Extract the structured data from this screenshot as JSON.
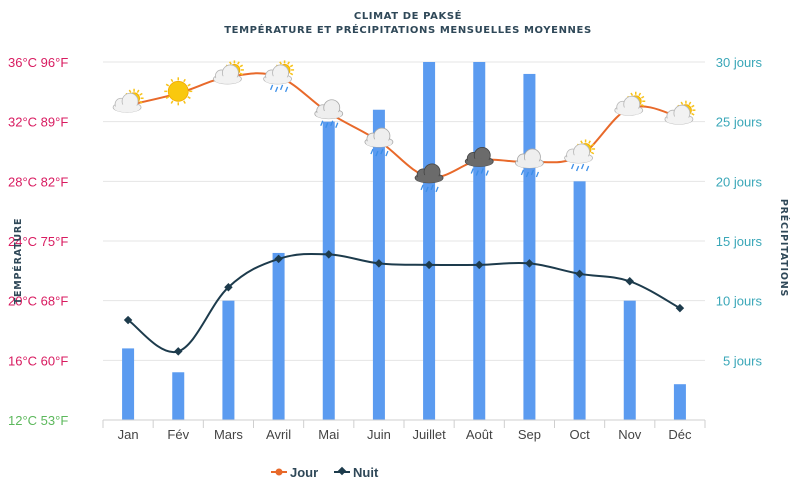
{
  "chart_data": {
    "type": "bar+line",
    "title": "CLIMAT DE PAKSÉ",
    "subtitle": "TEMPÉRATURE ET PRÉCIPITATIONS MENSUELLES MOYENNES",
    "ylabel_left": "TEMPÉRATURE",
    "ylabel_right": "PRÉCIPITATIONS",
    "categories": [
      "Jan",
      "Fév",
      "Mars",
      "Avril",
      "Mai",
      "Juin",
      "Juillet",
      "Août",
      "Sep",
      "Oct",
      "Nov",
      "Déc"
    ],
    "ylim_left": [
      12,
      36
    ],
    "ylim_right": [
      0,
      30
    ],
    "y_ticks_left": [
      {
        "value": 36,
        "label": "36°C 96°F",
        "color": "#d81b60"
      },
      {
        "value": 32,
        "label": "32°C 89°F",
        "color": "#d81b60"
      },
      {
        "value": 28,
        "label": "28°C 82°F",
        "color": "#d81b60"
      },
      {
        "value": 24,
        "label": "24°C 75°F",
        "color": "#d81b60"
      },
      {
        "value": 20,
        "label": "20°C 68°F",
        "color": "#d81b60"
      },
      {
        "value": 16,
        "label": "16°C 60°F",
        "color": "#d81b60"
      },
      {
        "value": 12,
        "label": "12°C 53°F",
        "color": "#5cb85c"
      }
    ],
    "y_ticks_right": [
      {
        "value": 30,
        "label": "30 jours"
      },
      {
        "value": 25,
        "label": "25 jours"
      },
      {
        "value": 20,
        "label": "20 jours"
      },
      {
        "value": 15,
        "label": "15 jours"
      },
      {
        "value": 10,
        "label": "10 jours"
      },
      {
        "value": 5,
        "label": "5 jours"
      }
    ],
    "series": [
      {
        "name": "Précipitations",
        "kind": "bar",
        "axis": "right",
        "color": "#5b9bf0",
        "values": [
          6,
          4,
          10,
          14,
          25,
          26,
          30,
          30,
          29,
          20,
          10,
          3
        ]
      },
      {
        "name": "Jour",
        "kind": "line",
        "axis": "left",
        "color": "#e8692a",
        "values": [
          33.1,
          33.9,
          35.0,
          35.0,
          32.6,
          30.7,
          28.3,
          29.4,
          29.3,
          29.7,
          32.9,
          32.3
        ]
      },
      {
        "name": "Nuit",
        "kind": "line",
        "axis": "left",
        "color": "#1d3b4c",
        "values": [
          18.7,
          16.6,
          20.9,
          22.8,
          23.1,
          22.5,
          22.4,
          22.4,
          22.5,
          21.8,
          21.3,
          19.5
        ]
      }
    ],
    "weather_icons": [
      "sun-cloud",
      "sun",
      "sun-cloud",
      "sun-cloud-rain",
      "cloud-rain",
      "cloud-rain",
      "storm-cloud",
      "storm-cloud",
      "cloud-rain",
      "sun-cloud-rain",
      "sun-cloud",
      "sun-cloud"
    ],
    "grid": true,
    "legend": {
      "position": "bottom-left",
      "items": [
        "Jour",
        "Nuit"
      ]
    }
  }
}
